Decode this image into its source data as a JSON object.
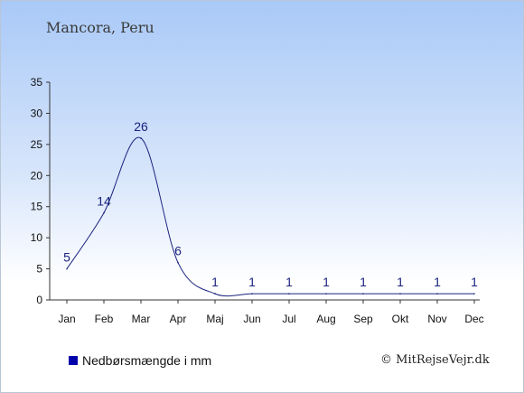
{
  "title": "Mancora, Peru",
  "legend_label": "Nedbørsmængde i mm",
  "copyright": "© MitRejseVejr.dk",
  "colors": {
    "series": "#1a237e",
    "legend": "#0000aa"
  },
  "chart_data": {
    "type": "line",
    "categories": [
      "Jan",
      "Feb",
      "Mar",
      "Apr",
      "Maj",
      "Jun",
      "Jul",
      "Aug",
      "Sep",
      "Okt",
      "Nov",
      "Dec"
    ],
    "series": [
      {
        "name": "Nedbørsmængde i mm",
        "values": [
          5,
          14,
          26,
          6,
          1,
          1,
          1,
          1,
          1,
          1,
          1,
          1
        ]
      }
    ],
    "data_labels": [
      "5",
      "14",
      "26",
      "6",
      "1",
      "1",
      "1",
      "1",
      "1",
      "1",
      "1",
      "1"
    ],
    "yticks": [
      0,
      5,
      10,
      15,
      20,
      25,
      30,
      35
    ],
    "ylim": [
      0,
      35
    ],
    "grid": false,
    "legend_position": "bottom-left"
  }
}
